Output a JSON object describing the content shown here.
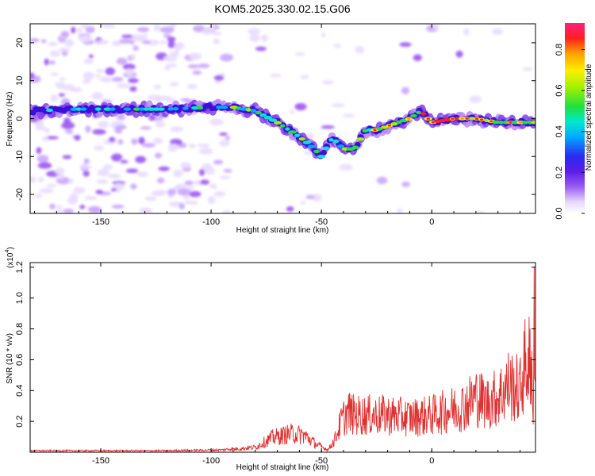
{
  "title": "KOM5.2025.330.02.15.G06",
  "chart_data": [
    {
      "type": "heatmap",
      "name": "spectrogram",
      "xlabel": "Height of straight line (km)",
      "ylabel": "Frequency (Hz)",
      "xlim": [
        -182,
        47
      ],
      "ylim": [
        -25,
        25
      ],
      "x_ticks": [
        -150,
        -100,
        -50,
        0
      ],
      "x_tick_labels": [
        "-150",
        "-100",
        "-50",
        "0"
      ],
      "y_ticks": [
        -20,
        -10,
        0,
        10,
        20
      ],
      "y_tick_labels": [
        "-20",
        "-10",
        "0",
        "10",
        "20"
      ],
      "ridge": {
        "description": "Dominant frequency track of the signal",
        "x": [
          -182,
          -160,
          -140,
          -120,
          -100,
          -90,
          -80,
          -70,
          -62,
          -55,
          -50,
          -45,
          -40,
          -35,
          -30,
          -25,
          -20,
          -10,
          -5,
          0,
          10,
          20,
          30,
          40,
          47
        ],
        "y": [
          2,
          2.5,
          2.5,
          2.5,
          3,
          3,
          2,
          -1,
          -4,
          -7,
          -10,
          -5,
          -8,
          -8,
          -3,
          -3,
          -2,
          0,
          2,
          -1,
          0,
          0,
          -1,
          -1,
          -1
        ]
      },
      "colorbar": {
        "label": "Normalized spectral amplitude",
        "range": [
          0,
          0.93
        ],
        "ticks": [
          0.0,
          0.2,
          0.4,
          0.6,
          0.8
        ],
        "tick_labels": [
          "0.0",
          "0.2",
          "0.4",
          "0.6",
          "0.8"
        ]
      }
    },
    {
      "type": "line",
      "name": "snr",
      "xlabel": "Height of straight line (km)",
      "ylabel": "SNR (10 * v/v)",
      "multiplier_label": "(x10",
      "multiplier_exponent": "4",
      "multiplier_close": ")",
      "color": "#e03030",
      "xlim": [
        -182,
        47
      ],
      "ylim": [
        0,
        1.23
      ],
      "x_ticks": [
        -150,
        -100,
        -50,
        0
      ],
      "x_tick_labels": [
        "-150",
        "-100",
        "-50",
        "0"
      ],
      "y_ticks": [
        0.2,
        0.4,
        0.6,
        0.8,
        1.0,
        1.2
      ],
      "y_tick_labels": [
        "0.2",
        "0.4",
        "0.6",
        "0.8",
        "1.0",
        "1.2"
      ],
      "envelope": {
        "x": [
          -182,
          -120,
          -95,
          -80,
          -72,
          -64,
          -58,
          -52,
          -47,
          -44,
          -41,
          -38,
          -35,
          -30,
          -20,
          -10,
          0,
          10,
          15,
          20,
          25,
          30,
          35,
          40,
          42,
          45,
          46,
          47
        ],
        "y": [
          0.01,
          0.01,
          0.015,
          0.04,
          0.12,
          0.15,
          0.14,
          0.06,
          0.02,
          0.1,
          0.25,
          0.33,
          0.3,
          0.3,
          0.3,
          0.28,
          0.3,
          0.35,
          0.38,
          0.45,
          0.4,
          0.45,
          0.55,
          0.5,
          0.7,
          0.75,
          0.4,
          0.45
        ]
      }
    }
  ]
}
